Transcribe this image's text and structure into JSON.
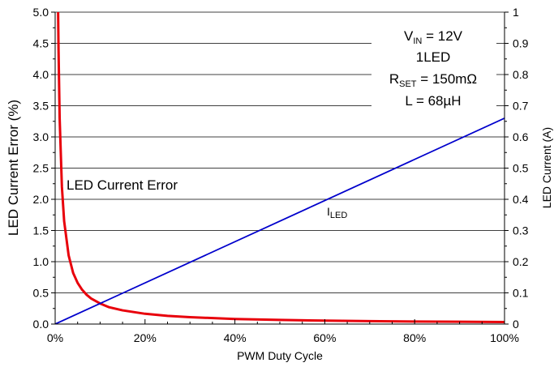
{
  "chart_data": {
    "type": "line",
    "xlabel": "PWM Duty Cycle",
    "ylabel_left": "LED Current Error (%)",
    "ylabel_right": "LED Current (A)",
    "xlim": [
      0,
      100
    ],
    "ylim_left": [
      0,
      5
    ],
    "ylim_right": [
      0,
      1
    ],
    "grid": "horizontal",
    "x_ticks": [
      "0%",
      "20%",
      "40%",
      "60%",
      "80%",
      "100%"
    ],
    "x_tick_values": [
      0,
      20,
      40,
      60,
      80,
      100
    ],
    "y_left_ticks": [
      "0.0",
      "0.5",
      "1.0",
      "1.5",
      "2.0",
      "2.5",
      "3.0",
      "3.5",
      "4.0",
      "4.5",
      "5.0"
    ],
    "y_left_tick_values": [
      0,
      0.5,
      1,
      1.5,
      2,
      2.5,
      3,
      3.5,
      4,
      4.5,
      5
    ],
    "y_right_ticks": [
      "0",
      "0.1",
      "0.2",
      "0.3",
      "0.4",
      "0.5",
      "0.6",
      "0.7",
      "0.8",
      "0.9",
      "1"
    ],
    "y_right_tick_values": [
      0,
      0.1,
      0.2,
      0.3,
      0.4,
      0.5,
      0.6,
      0.7,
      0.8,
      0.9,
      1
    ],
    "conditions": {
      "vin": {
        "main": "V",
        "sub": "IN",
        "rest": " = 12V"
      },
      "led": "1LED",
      "rset": {
        "main": "R",
        "sub": "SET",
        "rest": " = 150mΩ"
      },
      "inductor": "L = 68µH"
    },
    "series": [
      {
        "label": "LED Current Error",
        "axis": "left",
        "color": "#e8000b",
        "x": [
          0.5,
          0.75,
          1,
          1.5,
          2,
          3,
          4,
          5,
          6,
          7,
          8,
          10,
          12,
          15,
          20,
          25,
          30,
          40,
          50,
          60,
          70,
          80,
          90,
          100
        ],
        "y": [
          6.0,
          4.4,
          3.3,
          2.2,
          1.65,
          1.1,
          0.82,
          0.66,
          0.55,
          0.47,
          0.41,
          0.33,
          0.27,
          0.22,
          0.165,
          0.132,
          0.11,
          0.082,
          0.066,
          0.055,
          0.047,
          0.041,
          0.037,
          0.033
        ]
      },
      {
        "label_main": "I",
        "label_sub": "LED",
        "axis": "right",
        "color": "#0000cc",
        "x": [
          0,
          100
        ],
        "y": [
          0,
          0.66
        ]
      }
    ]
  }
}
